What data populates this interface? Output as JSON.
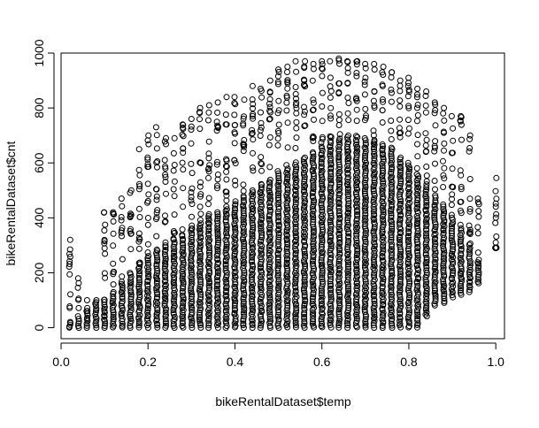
{
  "chart_data": {
    "type": "scatter",
    "xlabel": "bikeRentalDataset$temp",
    "ylabel": "bikeRentalDataset$cnt",
    "xlim": [
      0.0,
      1.02
    ],
    "ylim": [
      -40,
      1000
    ],
    "x_ticks": [
      0.0,
      0.2,
      0.4,
      0.6,
      0.8,
      1.0
    ],
    "x_tick_labels": [
      "0.0",
      "0.2",
      "0.4",
      "0.6",
      "0.8",
      "1.0"
    ],
    "y_ticks": [
      0,
      200,
      400,
      600,
      800,
      1000
    ],
    "y_tick_labels": [
      "0",
      "200",
      "400",
      "600",
      "800",
      "1000"
    ],
    "grid": false,
    "marker": "open-circle",
    "x_values": [
      0.02,
      0.04,
      0.06,
      0.08,
      0.1,
      0.12,
      0.14,
      0.16,
      0.18,
      0.2,
      0.22,
      0.24,
      0.26,
      0.28,
      0.3,
      0.32,
      0.34,
      0.36,
      0.38,
      0.4,
      0.42,
      0.44,
      0.46,
      0.48,
      0.5,
      0.52,
      0.54,
      0.56,
      0.58,
      0.6,
      0.62,
      0.64,
      0.66,
      0.68,
      0.7,
      0.72,
      0.74,
      0.76,
      0.78,
      0.8,
      0.82,
      0.84,
      0.86,
      0.88,
      0.9,
      0.92,
      0.94,
      0.96,
      1.0
    ],
    "y_max_by_x": [
      320,
      180,
      100,
      100,
      420,
      420,
      470,
      500,
      650,
      700,
      730,
      690,
      690,
      740,
      760,
      800,
      810,
      820,
      840,
      840,
      830,
      880,
      870,
      900,
      940,
      950,
      970,
      970,
      960,
      970,
      970,
      980,
      970,
      970,
      960,
      960,
      950,
      930,
      900,
      910,
      870,
      860,
      820,
      800,
      770,
      770,
      700,
      470,
      545
    ],
    "y_min_by_x": [
      0,
      0,
      0,
      0,
      0,
      0,
      0,
      0,
      0,
      0,
      0,
      0,
      0,
      0,
      0,
      0,
      0,
      0,
      0,
      0,
      0,
      0,
      0,
      0,
      0,
      0,
      0,
      0,
      0,
      0,
      0,
      0,
      0,
      0,
      0,
      0,
      0,
      0,
      0,
      0,
      0,
      40,
      80,
      90,
      110,
      120,
      130,
      160,
      290
    ],
    "dense_top_by_x": [
      20,
      40,
      60,
      80,
      100,
      130,
      160,
      200,
      230,
      260,
      280,
      300,
      320,
      340,
      360,
      380,
      400,
      420,
      440,
      460,
      480,
      500,
      520,
      540,
      560,
      580,
      600,
      620,
      640,
      660,
      680,
      690,
      700,
      700,
      690,
      680,
      660,
      640,
      620,
      600,
      560,
      520,
      480,
      440,
      400,
      360,
      300,
      240,
      290
    ]
  }
}
